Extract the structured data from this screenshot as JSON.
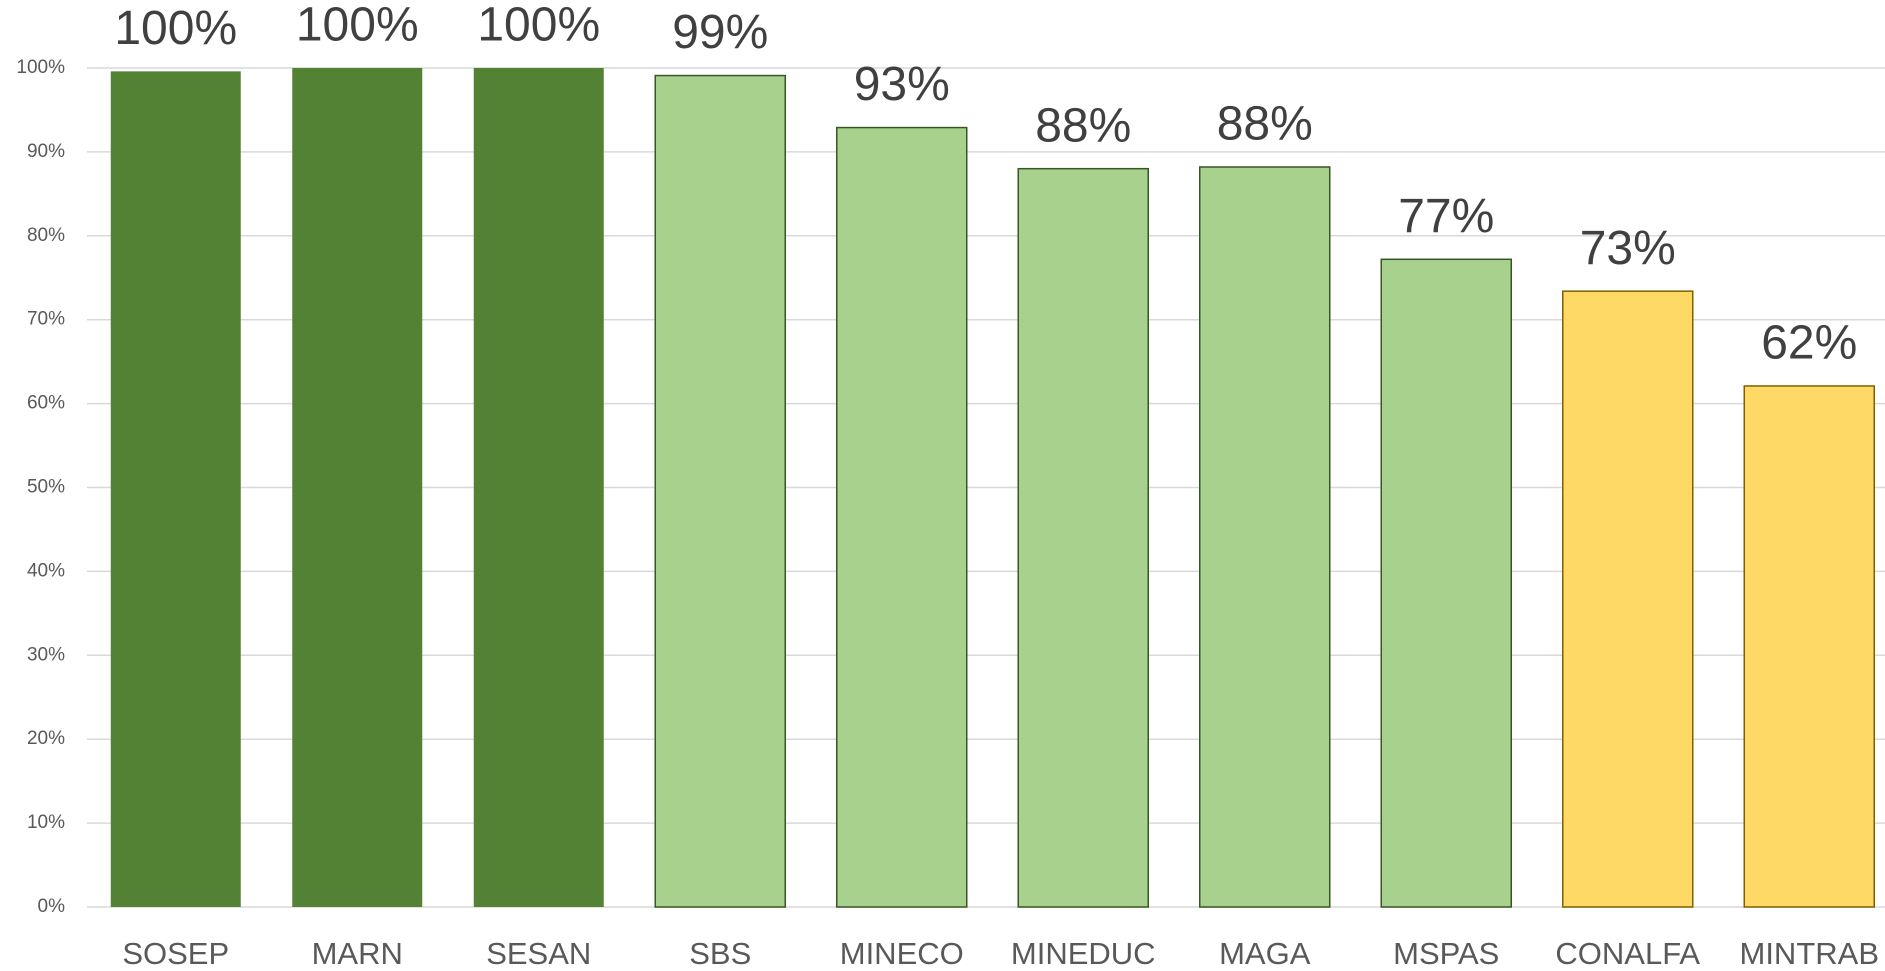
{
  "chart_data": {
    "type": "bar",
    "categories": [
      "SOSEP",
      "MARN",
      "SESAN",
      "SBS",
      "MINECO",
      "MINEDUC",
      "MAGA",
      "MSPAS",
      "CONALFA",
      "MINTRAB"
    ],
    "values": [
      99.6,
      100,
      100,
      99.1,
      92.9,
      88.0,
      88.2,
      77.2,
      73.4,
      62.1
    ],
    "value_labels": [
      "100%",
      "100%",
      "100%",
      "99%",
      "93%",
      "88%",
      "88%",
      "77%",
      "73%",
      "62%"
    ],
    "colors": [
      "#548235",
      "#548235",
      "#548235",
      "#a9d18e",
      "#a9d18e",
      "#a9d18e",
      "#a9d18e",
      "#a9d18e",
      "#ffd966",
      "#ffd966"
    ],
    "ylim": [
      0,
      100
    ],
    "yticks": [
      {
        "value": 0,
        "label": "0%"
      },
      {
        "value": 10,
        "label": "10%"
      },
      {
        "value": 20,
        "label": "20%"
      },
      {
        "value": 30,
        "label": "30%"
      },
      {
        "value": 40,
        "label": "40%"
      },
      {
        "value": 50,
        "label": "50%"
      },
      {
        "value": 60,
        "label": "60%"
      },
      {
        "value": 70,
        "label": "70%"
      },
      {
        "value": 80,
        "label": "80%"
      },
      {
        "value": 90,
        "label": "90%"
      },
      {
        "value": 100,
        "label": "100%"
      }
    ],
    "grid": true
  }
}
